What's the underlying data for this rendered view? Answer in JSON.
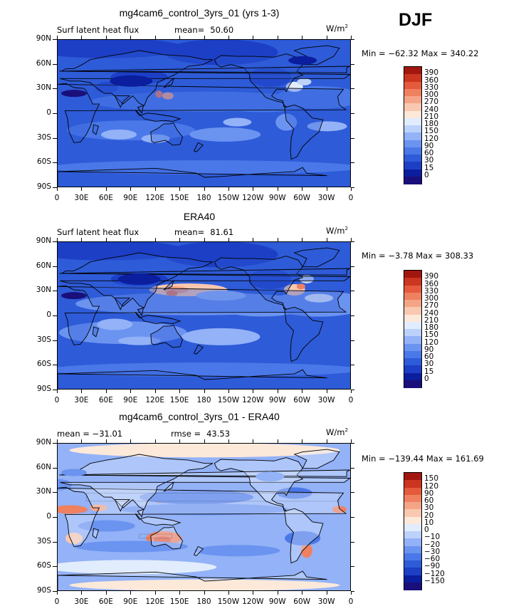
{
  "season": "DJF",
  "units": "W/m",
  "units_sup": "2",
  "colors": {
    "abs_levels": [
      "#1a0f7a",
      "#0b1e9e",
      "#1c3fc6",
      "#2e5bd8",
      "#4a78e8",
      "#6b93f0",
      "#93b2f7",
      "#bcd2fb",
      "#e1ecfd",
      "#fde9d9",
      "#f9c8b0",
      "#f5a587",
      "#ef8060",
      "#e55a3c",
      "#cc3520",
      "#a3160f",
      "#7a0a0a"
    ],
    "diff_levels": [
      "#1a0f7a",
      "#0b1e9e",
      "#1c3fc6",
      "#2e5bd8",
      "#4a78e8",
      "#6b93f0",
      "#93b2f7",
      "#bcd2fb",
      "#e1ecfd",
      "#fde9d9",
      "#f9c8b0",
      "#f5a587",
      "#ef8060",
      "#e55a3c",
      "#cc3520",
      "#a3160f",
      "#7a0a0a"
    ]
  },
  "panels": [
    {
      "title": "mg4cam6_control_3yrs_01 (yrs 1-3)",
      "left_label": "Surf latent heat flux",
      "stat_label": "mean=",
      "stat_value": "50.60",
      "minmax": "Min = −62.32 Max = 340.22",
      "colorbar_labels": [
        "390",
        "360",
        "330",
        "300",
        "270",
        "240",
        "210",
        "180",
        "150",
        "120",
        "90",
        "60",
        "30",
        "15",
        "0"
      ],
      "ocean_base": "#2e5bd8"
    },
    {
      "title": "ERA40",
      "left_label": "Surf latent heat flux",
      "stat_label": "mean=",
      "stat_value": "81.61",
      "minmax": "Min =  −3.78 Max = 308.33",
      "colorbar_labels": [
        "390",
        "360",
        "330",
        "300",
        "270",
        "240",
        "210",
        "180",
        "150",
        "120",
        "90",
        "60",
        "30",
        "15",
        "0"
      ],
      "ocean_base": "#2e5bd8"
    },
    {
      "title": "mg4cam6_control_3yrs_01 - ERA40",
      "left_label": "mean = −31.01",
      "stat_label": "rmse =",
      "stat_value": "43.53",
      "minmax": "Min = −139.44 Max = 161.69",
      "colorbar_labels": [
        "150",
        "120",
        "90",
        "60",
        "30",
        "20",
        "10",
        "0",
        "−10",
        "−20",
        "−30",
        "−60",
        "−90",
        "−120",
        "−150"
      ],
      "ocean_base": "#93b2f7"
    }
  ],
  "lat_labels": [
    "90N",
    "60N",
    "30N",
    "0",
    "30S",
    "60S",
    "90S"
  ],
  "lon_labels": [
    "0",
    "30E",
    "60E",
    "90E",
    "120E",
    "150E",
    "180",
    "150W",
    "120W",
    "90W",
    "60W",
    "30W",
    "0"
  ],
  "chart_data": [
    {
      "type": "heatmap",
      "title": "mg4cam6_control_3yrs_01 (yrs 1-3)",
      "variable": "Surf latent heat flux",
      "units": "W/m2",
      "mean": 50.6,
      "min": -62.32,
      "max": 340.22,
      "levels": [
        0,
        15,
        30,
        60,
        90,
        120,
        150,
        180,
        210,
        240,
        270,
        300,
        330,
        360,
        390
      ],
      "x_ticks": [
        "0",
        "30E",
        "60E",
        "90E",
        "120E",
        "150E",
        "180",
        "150W",
        "120W",
        "90W",
        "60W",
        "30W",
        "0"
      ],
      "y_ticks": [
        "90N",
        "60N",
        "30N",
        "0",
        "30S",
        "60S",
        "90S"
      ]
    },
    {
      "type": "heatmap",
      "title": "ERA40",
      "variable": "Surf latent heat flux",
      "units": "W/m2",
      "mean": 81.61,
      "min": -3.78,
      "max": 308.33,
      "levels": [
        0,
        15,
        30,
        60,
        90,
        120,
        150,
        180,
        210,
        240,
        270,
        300,
        330,
        360,
        390
      ],
      "x_ticks": [
        "0",
        "30E",
        "60E",
        "90E",
        "120E",
        "150E",
        "180",
        "150W",
        "120W",
        "90W",
        "60W",
        "30W",
        "0"
      ],
      "y_ticks": [
        "90N",
        "60N",
        "30N",
        "0",
        "30S",
        "60S",
        "90S"
      ]
    },
    {
      "type": "heatmap",
      "title": "mg4cam6_control_3yrs_01 - ERA40",
      "units": "W/m2",
      "mean": -31.01,
      "rmse": 43.53,
      "min": -139.44,
      "max": 161.69,
      "levels": [
        -150,
        -120,
        -90,
        -60,
        -30,
        -20,
        -10,
        0,
        10,
        20,
        30,
        60,
        90,
        120,
        150
      ],
      "x_ticks": [
        "0",
        "30E",
        "60E",
        "90E",
        "120E",
        "150E",
        "180",
        "150W",
        "120W",
        "90W",
        "60W",
        "30W",
        "0"
      ],
      "y_ticks": [
        "90N",
        "60N",
        "30N",
        "0",
        "30S",
        "60S",
        "90S"
      ]
    }
  ]
}
